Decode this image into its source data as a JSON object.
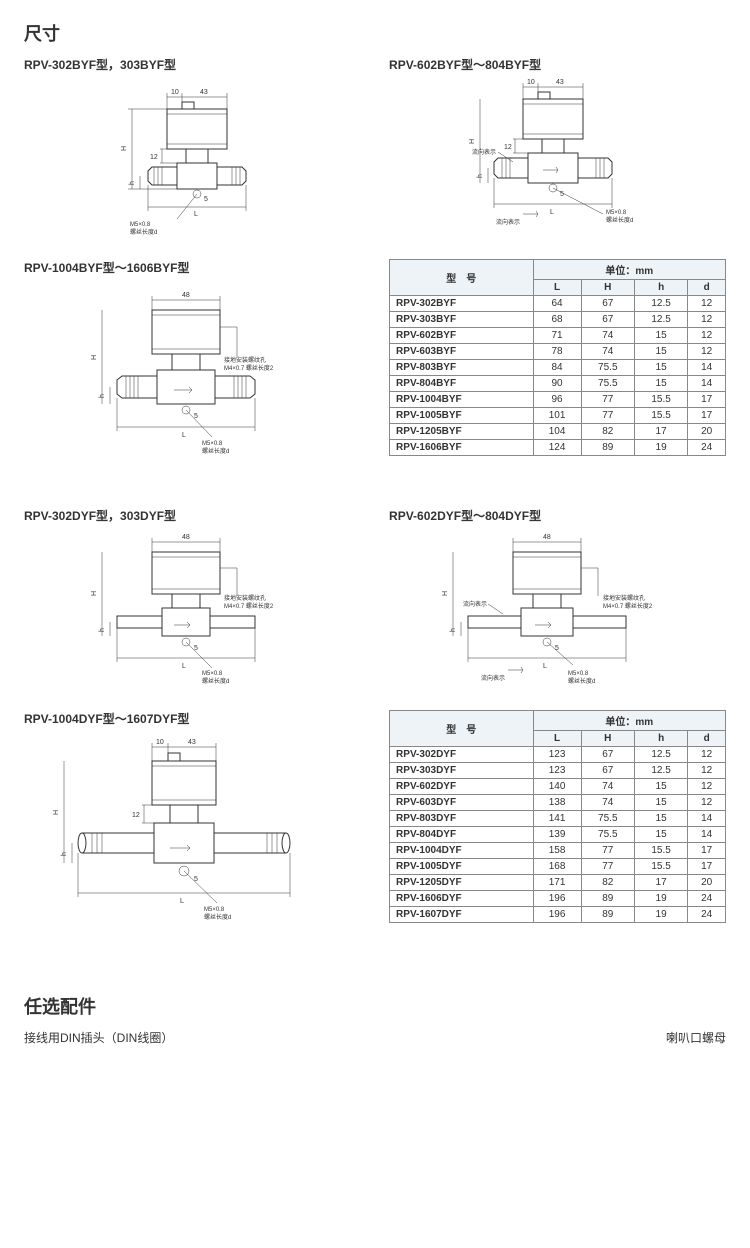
{
  "page": {
    "title": "尺寸",
    "accessories_title": "任选配件",
    "accessory_1": "接线用DIN插头（DIN线圈）",
    "accessory_2": "喇叭口螺母"
  },
  "diagrams": {
    "g1": {
      "label": "RPV-302BYF型，303BYF型",
      "top_dim1": "10",
      "top_dim2": "43",
      "side_h": "H",
      "side_h2": "h",
      "mid_dim": "12",
      "note1": "M5×0.8",
      "note2": "螺丝长度d",
      "bot_L": "L",
      "five": "5"
    },
    "g2": {
      "label": "RPV-602BYF型～804BYF型",
      "top_dim1": "10",
      "top_dim2": "43",
      "side_h": "H",
      "side_h2": "h",
      "mid_dim": "12",
      "flow": "流向表示",
      "note1": "M5×0.8",
      "note2": "螺丝长度d",
      "bot_L": "L",
      "five": "5"
    },
    "g3": {
      "label": "RPV-1004BYF型～1606BYF型",
      "top_dim": "48",
      "side_h": "H",
      "side_h2": "h",
      "ground": "接地安装螺纹孔",
      "ground2": "M4×0.7 螺丝长度2",
      "note1": "M5×0.8",
      "note2": "螺丝长度d",
      "bot_L": "L",
      "five": "5"
    },
    "g4": {
      "label": "RPV-302DYF型，303DYF型",
      "top_dim": "48",
      "side_h": "H",
      "side_h2": "h",
      "ground": "接地安装螺纹孔",
      "ground2": "M4×0.7 螺丝长度2",
      "note1": "M5×0.8",
      "note2": "螺丝长度d",
      "bot_L": "L",
      "five": "5"
    },
    "g5": {
      "label": "RPV-602DYF型～804DYF型",
      "top_dim": "48",
      "side_h": "H",
      "side_h2": "h",
      "flow": "流向表示",
      "ground": "接地安装螺纹孔",
      "ground2": "M4×0.7 螺丝长度2",
      "note1": "M5×0.8",
      "note2": "螺丝长度d",
      "bot_L": "L",
      "five": "5"
    },
    "g6": {
      "label": "RPV-1004DYF型～1607DYF型",
      "top_dim1": "10",
      "top_dim2": "43",
      "side_h": "H",
      "side_h2": "h",
      "mid_dim": "12",
      "note1": "M5×0.8",
      "note2": "螺丝长度d",
      "bot_L": "L",
      "five": "5"
    }
  },
  "table1": {
    "header_model": "型　号",
    "header_unit": "单位：mm",
    "cols": [
      "L",
      "H",
      "h",
      "d"
    ],
    "rows": [
      {
        "model": "RPV-302BYF",
        "L": "64",
        "H": "67",
        "h": "12.5",
        "d": "12"
      },
      {
        "model": "RPV-303BYF",
        "L": "68",
        "H": "67",
        "h": "12.5",
        "d": "12"
      },
      {
        "model": "RPV-602BYF",
        "L": "71",
        "H": "74",
        "h": "15",
        "d": "12"
      },
      {
        "model": "RPV-603BYF",
        "L": "78",
        "H": "74",
        "h": "15",
        "d": "12"
      },
      {
        "model": "RPV-803BYF",
        "L": "84",
        "H": "75.5",
        "h": "15",
        "d": "14"
      },
      {
        "model": "RPV-804BYF",
        "L": "90",
        "H": "75.5",
        "h": "15",
        "d": "14"
      },
      {
        "model": "RPV-1004BYF",
        "L": "96",
        "H": "77",
        "h": "15.5",
        "d": "17"
      },
      {
        "model": "RPV-1005BYF",
        "L": "101",
        "H": "77",
        "h": "15.5",
        "d": "17"
      },
      {
        "model": "RPV-1205BYF",
        "L": "104",
        "H": "82",
        "h": "17",
        "d": "20"
      },
      {
        "model": "RPV-1606BYF",
        "L": "124",
        "H": "89",
        "h": "19",
        "d": "24"
      }
    ]
  },
  "table2": {
    "header_model": "型　号",
    "header_unit": "单位：mm",
    "cols": [
      "L",
      "H",
      "h",
      "d"
    ],
    "rows": [
      {
        "model": "RPV-302DYF",
        "L": "123",
        "H": "67",
        "h": "12.5",
        "d": "12"
      },
      {
        "model": "RPV-303DYF",
        "L": "123",
        "H": "67",
        "h": "12.5",
        "d": "12"
      },
      {
        "model": "RPV-602DYF",
        "L": "140",
        "H": "74",
        "h": "15",
        "d": "12"
      },
      {
        "model": "RPV-603DYF",
        "L": "138",
        "H": "74",
        "h": "15",
        "d": "12"
      },
      {
        "model": "RPV-803DYF",
        "L": "141",
        "H": "75.5",
        "h": "15",
        "d": "14"
      },
      {
        "model": "RPV-804DYF",
        "L": "139",
        "H": "75.5",
        "h": "15",
        "d": "14"
      },
      {
        "model": "RPV-1004DYF",
        "L": "158",
        "H": "77",
        "h": "15.5",
        "d": "17"
      },
      {
        "model": "RPV-1005DYF",
        "L": "168",
        "H": "77",
        "h": "15.5",
        "d": "17"
      },
      {
        "model": "RPV-1205DYF",
        "L": "171",
        "H": "82",
        "h": "17",
        "d": "20"
      },
      {
        "model": "RPV-1606DYF",
        "L": "196",
        "H": "89",
        "h": "19",
        "d": "24"
      },
      {
        "model": "RPV-1607DYF",
        "L": "196",
        "H": "89",
        "h": "19",
        "d": "24"
      }
    ]
  },
  "style": {
    "table_header_bg": "#eef3f8",
    "border_color": "#888888",
    "text_color": "#333333",
    "page_bg": "#ffffff",
    "title_fontsize": 18,
    "label_fontsize": 12,
    "table_fontsize": 10
  }
}
